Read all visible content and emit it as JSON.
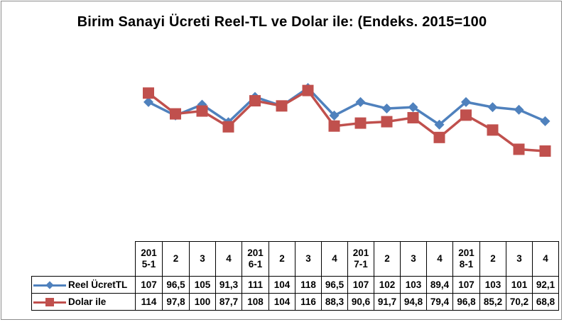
{
  "chart_data": {
    "type": "line",
    "title": "Birim Sanayi Ücreti Reel-TL ve Dolar ile: (Endeks. 2015=100",
    "categories": [
      [
        "201",
        "5-1"
      ],
      [
        "2"
      ],
      [
        "3"
      ],
      [
        "4"
      ],
      [
        "201",
        "6-1"
      ],
      [
        "2"
      ],
      [
        "3"
      ],
      [
        "4"
      ],
      [
        "201",
        "7-1"
      ],
      [
        "2"
      ],
      [
        "3"
      ],
      [
        "4"
      ],
      [
        "201",
        "8-1"
      ],
      [
        "2"
      ],
      [
        "3"
      ],
      [
        "4"
      ]
    ],
    "series": [
      {
        "name": "Reel ÜcretTL",
        "color": "#4f81bd",
        "marker": "diamond",
        "values": [
          107,
          96.5,
          105,
          91.3,
          111,
          104,
          118,
          96.5,
          107,
          102,
          103,
          89.4,
          107,
          103,
          101,
          92.1
        ],
        "labels": [
          "107",
          "96,5",
          "105",
          "91,3",
          "111",
          "104",
          "118",
          "96,5",
          "107",
          "102",
          "103",
          "89,4",
          "107",
          "103",
          "101",
          "92,1"
        ]
      },
      {
        "name": "Dolar ile",
        "color": "#c0504d",
        "marker": "square",
        "values": [
          114,
          97.8,
          100,
          87.7,
          108,
          104,
          116,
          88.3,
          90.6,
          91.7,
          94.8,
          79.4,
          96.8,
          85.2,
          70.2,
          68.8
        ],
        "labels": [
          "114",
          "97,8",
          "100",
          "87,7",
          "108",
          "104",
          "116",
          "88,3",
          "90,6",
          "91,7",
          "94,8",
          "79,4",
          "96,8",
          "85,2",
          "70,2",
          "68,8"
        ]
      }
    ],
    "ylim": [
      0,
      130
    ],
    "grid": false,
    "legend": "data-table-left"
  }
}
